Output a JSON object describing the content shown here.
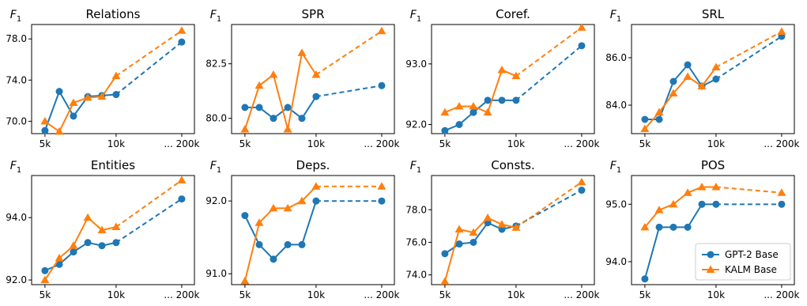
{
  "colors": {
    "gpt2": "#1f77b4",
    "kalm": "#ff7f0e"
  },
  "legend": {
    "gpt2_label": "GPT-2 Base",
    "kalm_label": "KALM Base",
    "placement": "lower-right of last panel"
  },
  "chart_data": [
    {
      "type": "line",
      "title": "Relations",
      "ylabel": "F1",
      "x_tick_labels": [
        "5k",
        "10k",
        "... 200k"
      ],
      "x": [
        5,
        6,
        7,
        8,
        9,
        10,
        200
      ],
      "ylim": [
        68.8,
        79.4
      ],
      "yticks": [
        70.0,
        74.0,
        78.0
      ],
      "series": [
        {
          "name": "GPT-2 Base",
          "values": [
            69.1,
            72.9,
            70.5,
            72.4,
            72.5,
            72.6,
            77.7
          ]
        },
        {
          "name": "KALM Base",
          "values": [
            70.0,
            69.0,
            71.8,
            72.3,
            72.4,
            74.4,
            78.8
          ]
        }
      ]
    },
    {
      "type": "line",
      "title": "SPR",
      "ylabel": "F1",
      "x_tick_labels": [
        "5k",
        "10k",
        "... 200k"
      ],
      "x": [
        5,
        6,
        7,
        8,
        9,
        10,
        200
      ],
      "ylim": [
        79.3,
        84.3
      ],
      "yticks": [
        80.0,
        82.5
      ],
      "series": [
        {
          "name": "GPT-2 Base",
          "values": [
            80.5,
            80.5,
            80.0,
            80.5,
            80.0,
            81.0,
            81.5
          ]
        },
        {
          "name": "KALM Base",
          "values": [
            79.5,
            81.5,
            82.0,
            79.5,
            83.0,
            82.0,
            84.0
          ]
        }
      ]
    },
    {
      "type": "line",
      "title": "Coref.",
      "ylabel": "F1",
      "x_tick_labels": [
        "5k",
        "10k",
        "... 200k"
      ],
      "x": [
        5,
        6,
        7,
        8,
        9,
        10,
        200
      ],
      "ylim": [
        91.85,
        93.65
      ],
      "yticks": [
        92.0,
        93.0
      ],
      "series": [
        {
          "name": "GPT-2 Base",
          "values": [
            91.9,
            92.0,
            92.2,
            92.4,
            92.4,
            92.4,
            93.3
          ]
        },
        {
          "name": "KALM Base",
          "values": [
            92.2,
            92.3,
            92.3,
            92.2,
            92.9,
            92.8,
            93.6
          ]
        }
      ]
    },
    {
      "type": "line",
      "title": "SRL",
      "ylabel": "F1",
      "x_tick_labels": [
        "5k",
        "10k",
        "... 200k"
      ],
      "x": [
        5,
        6,
        7,
        8,
        9,
        10,
        200
      ],
      "ylim": [
        82.8,
        87.4
      ],
      "yticks": [
        84.0,
        86.0
      ],
      "series": [
        {
          "name": "GPT-2 Base",
          "values": [
            83.4,
            83.4,
            85.0,
            85.7,
            84.8,
            85.1,
            86.9
          ]
        },
        {
          "name": "KALM Base",
          "values": [
            83.0,
            83.7,
            84.5,
            85.2,
            84.8,
            85.6,
            87.1
          ]
        }
      ]
    },
    {
      "type": "line",
      "title": "Entities",
      "ylabel": "F1",
      "x_tick_labels": [
        "5k",
        "10k",
        "... 200k"
      ],
      "x": [
        5,
        6,
        7,
        8,
        9,
        10,
        200
      ],
      "ylim": [
        91.85,
        95.35
      ],
      "yticks": [
        92.0,
        94.0
      ],
      "series": [
        {
          "name": "GPT-2 Base",
          "values": [
            92.3,
            92.5,
            92.9,
            93.2,
            93.1,
            93.2,
            94.6
          ]
        },
        {
          "name": "KALM Base",
          "values": [
            92.0,
            92.7,
            93.1,
            94.0,
            93.6,
            93.7,
            95.2
          ]
        }
      ]
    },
    {
      "type": "line",
      "title": "Deps.",
      "ylabel": "F1",
      "x_tick_labels": [
        "5k",
        "10k",
        "... 200k"
      ],
      "x": [
        5,
        6,
        7,
        8,
        9,
        10,
        200
      ],
      "ylim": [
        90.85,
        92.35
      ],
      "yticks": [
        91.0,
        92.0
      ],
      "series": [
        {
          "name": "GPT-2 Base",
          "values": [
            91.8,
            91.4,
            91.2,
            91.4,
            91.4,
            92.0,
            92.0
          ]
        },
        {
          "name": "KALM Base",
          "values": [
            90.9,
            91.7,
            91.9,
            91.9,
            92.0,
            92.2,
            92.2
          ]
        }
      ]
    },
    {
      "type": "line",
      "title": "Consts.",
      "ylabel": "F1",
      "x_tick_labels": [
        "5k",
        "10k",
        "... 200k"
      ],
      "x": [
        5,
        6,
        7,
        8,
        9,
        10,
        200
      ],
      "ylim": [
        73.4,
        80.1
      ],
      "yticks": [
        74.0,
        76.0,
        78.0
      ],
      "series": [
        {
          "name": "GPT-2 Base",
          "values": [
            75.3,
            75.9,
            76.0,
            77.2,
            76.8,
            77.0,
            79.2
          ]
        },
        {
          "name": "KALM Base",
          "values": [
            73.6,
            76.8,
            76.6,
            77.5,
            77.1,
            76.9,
            79.7
          ]
        }
      ]
    },
    {
      "type": "line",
      "title": "POS",
      "ylabel": "F1",
      "x_tick_labels": [
        "5k",
        "10k",
        "... 200k"
      ],
      "x": [
        5,
        6,
        7,
        8,
        9,
        10,
        200
      ],
      "ylim": [
        93.6,
        95.5
      ],
      "yticks": [
        94.0,
        95.0
      ],
      "series": [
        {
          "name": "GPT-2 Base",
          "values": [
            93.7,
            94.6,
            94.6,
            94.6,
            95.0,
            95.0,
            95.0
          ]
        },
        {
          "name": "KALM Base",
          "values": [
            94.6,
            94.9,
            95.0,
            95.2,
            95.3,
            95.3,
            95.2
          ]
        }
      ]
    }
  ]
}
